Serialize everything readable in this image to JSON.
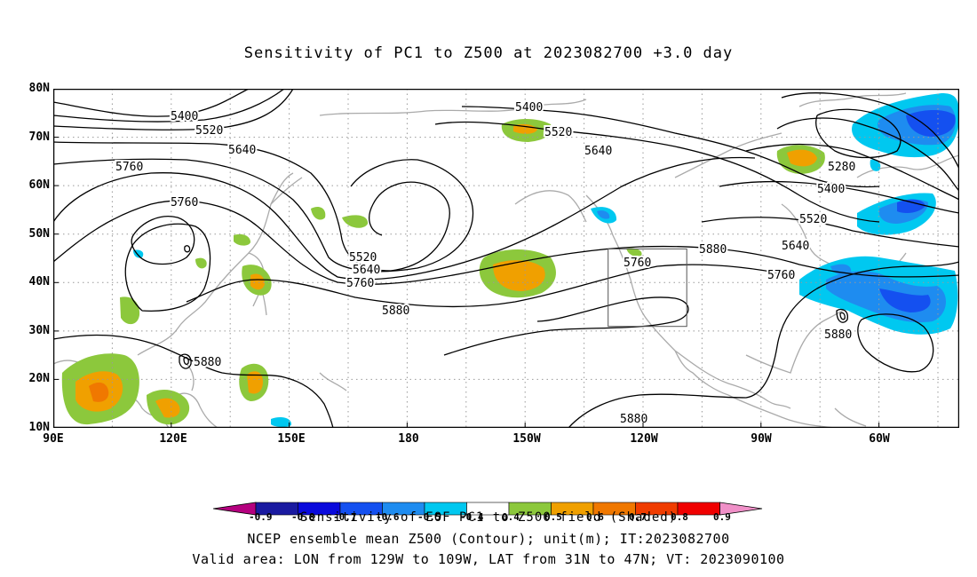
{
  "title": "Sensitivity of PC1 to Z500 at 2023082700 +3.0 day",
  "lat_labels": [
    "80N",
    "70N",
    "60N",
    "50N",
    "40N",
    "30N",
    "20N",
    "10N"
  ],
  "lon_labels": [
    "90E",
    "120E",
    "150E",
    "180",
    "150W",
    "120W",
    "90W",
    "60W"
  ],
  "contour_labels": {
    "c5400_a": "5400",
    "c5400_b": "5400",
    "c5400_c": "5400",
    "c5520_a": "5520",
    "c5520_b": "5520",
    "c5520_c": "5520",
    "c5520_d": "5520",
    "c5640_a": "5640",
    "c5640_b": "5640",
    "c5640_c": "5640",
    "c5640_d": "5640",
    "c5760_a": "5760",
    "c5760_b": "5760",
    "c5760_c": "5760",
    "c5760_d": "5760",
    "c5760_e": "5760",
    "c5880_a": "5880",
    "c5880_b": "5880",
    "c5880_c": "5880",
    "c5880_d": "5880",
    "c5880_e": "5880",
    "c5280": "5280"
  },
  "colorbar": {
    "ticks": [
      "-0.9",
      "-0.8",
      "-0.7",
      "-0.6",
      "-0.5",
      "-0.4",
      "0.4",
      "0.5",
      "0.6",
      "0.7",
      "0.8",
      "0.9"
    ],
    "colors": [
      "#b5007f",
      "#1a1aa0",
      "#0a0adc",
      "#1450f0",
      "#1e8cf0",
      "#00c8f0",
      "#ffffff",
      "#8cc83c",
      "#f0a000",
      "#f07800",
      "#f03c00",
      "#f00000",
      "#f090c8"
    ],
    "title": "Sensitivity of EOF PC1 to Z500 field (Shaded)"
  },
  "footer_line1": "NCEP ensemble mean Z500 (Contour); unit(m); IT:2023082700",
  "footer_line2": "Valid area: LON from 129W to 109W, LAT from 31N to 47N; VT: 2023090100",
  "valid_area": {
    "lon_min": -129,
    "lon_max": -109,
    "lat_min": 31,
    "lat_max": 47
  }
}
